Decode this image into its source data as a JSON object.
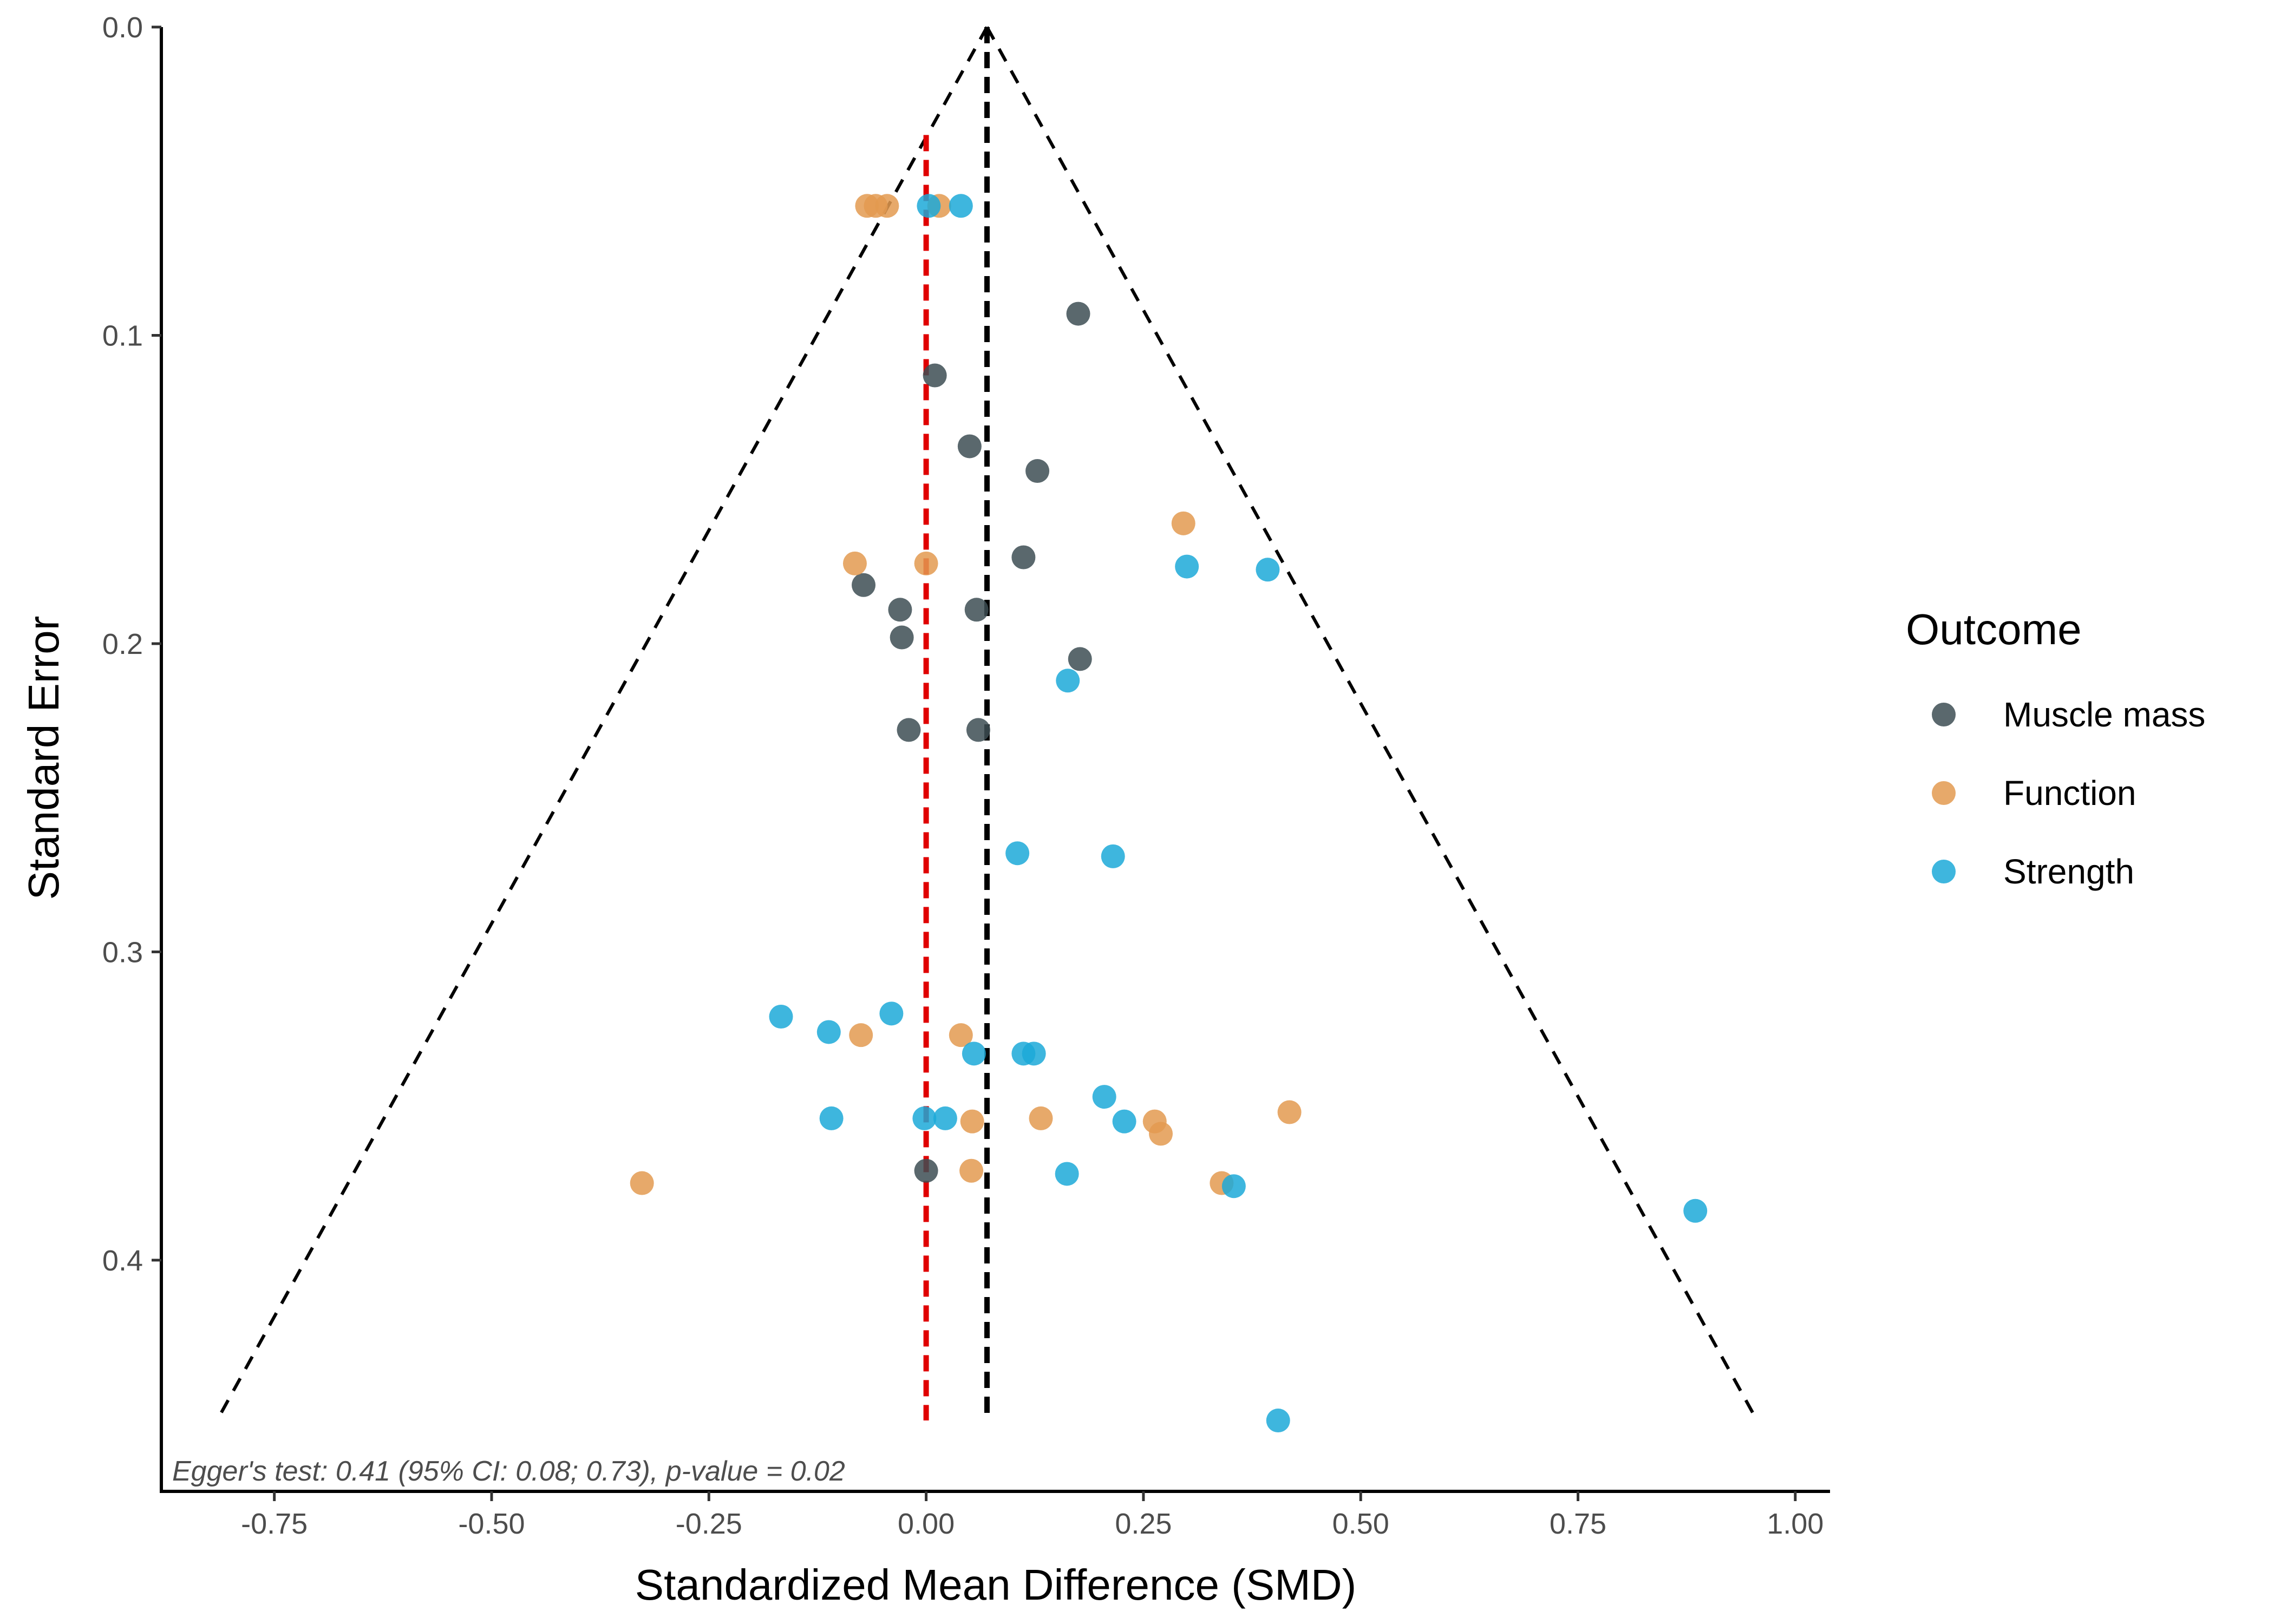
{
  "chart_data": {
    "type": "scatter",
    "title": "",
    "xlabel": "Standardized Mean Difference (SMD)",
    "ylabel": "Standard Error",
    "xlim": [
      -0.88,
      1.04
    ],
    "ylim": [
      0,
      0.475
    ],
    "y_reversed": true,
    "x_ticks": [
      -0.75,
      -0.5,
      -0.25,
      0.0,
      0.25,
      0.5,
      0.75,
      1.0
    ],
    "x_tick_labels": [
      "-0.75",
      "-0.50",
      "-0.25",
      "0.00",
      "0.25",
      "0.50",
      "0.75",
      "1.00"
    ],
    "y_ticks": [
      0.0,
      0.1,
      0.2,
      0.3,
      0.4
    ],
    "y_tick_labels": [
      "0.0",
      "0.1",
      "0.2",
      "0.3",
      "0.4"
    ],
    "grid": false,
    "legend": {
      "title": "Outcome",
      "position": "right"
    },
    "funnel": {
      "center": 0.07,
      "apex_se": 0.0,
      "base_se": 0.452,
      "base_left": -0.816,
      "base_right": 0.956
    },
    "reference_line": {
      "x": 0.0,
      "color": "#e00000",
      "se_start": 0.035,
      "se_end": 0.452
    },
    "pooled_line": {
      "x": 0.07,
      "color": "#000000",
      "se_start": 0.0,
      "se_end": 0.452
    },
    "annotation": "Egger's test: 0.41 (95% CI: 0.08; 0.73), p-value = 0.02",
    "series": [
      {
        "name": "Muscle mass",
        "color": "#3d4e54",
        "points": [
          [
            0.175,
            0.093
          ],
          [
            0.01,
            0.113
          ],
          [
            0.05,
            0.136
          ],
          [
            0.128,
            0.144
          ],
          [
            0.112,
            0.172
          ],
          [
            -0.072,
            0.181
          ],
          [
            -0.03,
            0.189
          ],
          [
            0.058,
            0.189
          ],
          [
            -0.028,
            0.198
          ],
          [
            0.177,
            0.205
          ],
          [
            -0.02,
            0.228
          ],
          [
            0.06,
            0.228
          ],
          [
            0.0,
            0.371
          ]
        ]
      },
      {
        "name": "Function",
        "color": "#e39a50",
        "points": [
          [
            -0.068,
            0.058
          ],
          [
            -0.058,
            0.058
          ],
          [
            -0.045,
            0.058
          ],
          [
            0.015,
            0.058
          ],
          [
            0.296,
            0.161
          ],
          [
            -0.082,
            0.174
          ],
          [
            0.0,
            0.174
          ],
          [
            -0.075,
            0.327
          ],
          [
            0.04,
            0.327
          ],
          [
            0.053,
            0.355
          ],
          [
            0.132,
            0.354
          ],
          [
            0.263,
            0.355
          ],
          [
            0.27,
            0.359
          ],
          [
            0.418,
            0.352
          ],
          [
            -0.327,
            0.375
          ],
          [
            0.052,
            0.371
          ],
          [
            0.34,
            0.375
          ]
        ]
      },
      {
        "name": "Strength",
        "color": "#1ca9d8",
        "points": [
          [
            0.003,
            0.058
          ],
          [
            0.04,
            0.058
          ],
          [
            0.3,
            0.175
          ],
          [
            0.393,
            0.176
          ],
          [
            0.163,
            0.212
          ],
          [
            0.105,
            0.268
          ],
          [
            0.215,
            0.269
          ],
          [
            -0.167,
            0.321
          ],
          [
            -0.112,
            0.326
          ],
          [
            -0.04,
            0.32
          ],
          [
            0.055,
            0.333
          ],
          [
            0.112,
            0.333
          ],
          [
            0.124,
            0.333
          ],
          [
            -0.109,
            0.354
          ],
          [
            -0.002,
            0.354
          ],
          [
            0.022,
            0.354
          ],
          [
            0.205,
            0.347
          ],
          [
            0.228,
            0.355
          ],
          [
            0.162,
            0.372
          ],
          [
            0.354,
            0.376
          ],
          [
            0.885,
            0.384
          ],
          [
            0.405,
            0.452
          ]
        ]
      }
    ]
  }
}
